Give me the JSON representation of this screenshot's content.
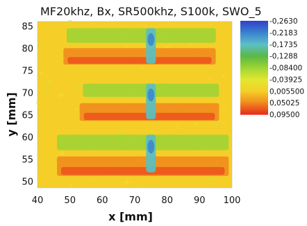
{
  "chart_data": {
    "type": "heatmap",
    "title": "MF20khz, Bx, SR500khz, S100k, SWO_5",
    "xlabel": "x [mm]",
    "ylabel": "y [mm]",
    "xlim": [
      40,
      100
    ],
    "ylim": [
      48.5,
      86
    ],
    "xticks": [
      "40",
      "50",
      "60",
      "70",
      "80",
      "90",
      "100"
    ],
    "yticks": [
      "50",
      "55",
      "60",
      "65",
      "70",
      "75",
      "80",
      "85"
    ],
    "colorbar": {
      "labels": [
        "-0,2630",
        "-0,2183",
        "-0,1735",
        "-0,1288",
        "-0,08400",
        "-0,03925",
        "0,005500",
        "0,05025",
        "0,09500"
      ],
      "colors": [
        "#3040c8",
        "#3a82d0",
        "#5cc0c8",
        "#5ab845",
        "#9ed434",
        "#e2e830",
        "#f5cf28",
        "#f08a1e",
        "#e8281c"
      ]
    },
    "background_level": 0.0055,
    "regions": [
      {
        "name": "strip-1-upper",
        "x": [
          49,
          95
        ],
        "y": [
          81.2,
          84.5
        ],
        "value": -0.084
      },
      {
        "name": "strip-1-lower",
        "x": [
          48,
          95
        ],
        "y": [
          76.3,
          80.0
        ],
        "value": 0.05
      },
      {
        "name": "strip-2-upper",
        "x": [
          54,
          96
        ],
        "y": [
          69.0,
          72.0
        ],
        "value": -0.084
      },
      {
        "name": "strip-2-lower",
        "x": [
          53,
          96
        ],
        "y": [
          63.6,
          67.6
        ],
        "value": 0.05
      },
      {
        "name": "strip-3-upper",
        "x": [
          46,
          99
        ],
        "y": [
          57.0,
          60.5
        ],
        "value": -0.084
      },
      {
        "name": "strip-3-lower",
        "x": [
          46,
          99
        ],
        "y": [
          51.2,
          55.6
        ],
        "value": 0.05
      },
      {
        "name": "center-1",
        "x": [
          73.5,
          76.5
        ],
        "y": [
          76.5,
          84.5
        ],
        "value": -0.17
      },
      {
        "name": "center-2",
        "x": [
          73.5,
          76.5
        ],
        "y": [
          64.0,
          72.0
        ],
        "value": -0.17
      },
      {
        "name": "center-3",
        "x": [
          73.5,
          76.5
        ],
        "y": [
          52.0,
          60.5
        ],
        "value": -0.17
      }
    ]
  }
}
